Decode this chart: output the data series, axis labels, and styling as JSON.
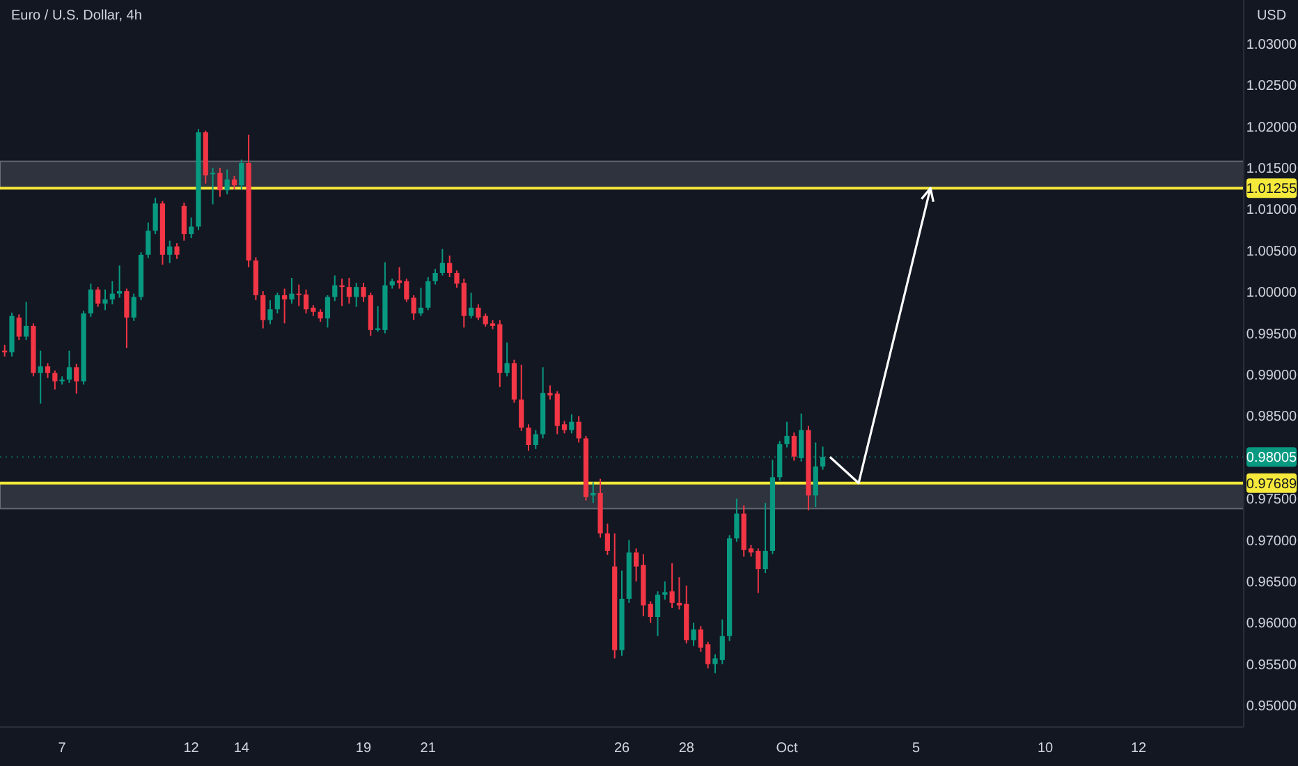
{
  "chart_data": {
    "type": "candlestick",
    "title": "Euro / U.S. Dollar, 4h",
    "ylabel": "USD",
    "categories": [
      null,
      null,
      null,
      null,
      null,
      null,
      null,
      null,
      "7",
      null,
      null,
      null,
      null,
      null,
      null,
      null,
      null,
      null,
      null,
      null,
      null,
      null,
      null,
      null,
      null,
      null,
      "12",
      null,
      null,
      null,
      null,
      null,
      null,
      "14",
      null,
      null,
      null,
      null,
      null,
      null,
      null,
      null,
      null,
      null,
      null,
      null,
      null,
      null,
      null,
      null,
      "19",
      null,
      null,
      null,
      null,
      null,
      null,
      null,
      null,
      "21",
      null,
      null,
      null,
      null,
      null,
      null,
      null,
      null,
      null,
      null,
      null,
      null,
      null,
      null,
      null,
      null,
      null,
      null,
      null,
      null,
      null,
      null,
      null,
      null,
      null,
      null,
      "26",
      null,
      null,
      null,
      null,
      null,
      null,
      null,
      null,
      "28",
      null,
      null,
      null,
      null,
      null,
      null,
      null,
      null,
      null,
      null,
      null,
      null,
      null,
      "Oct",
      null,
      null,
      null,
      null,
      null,
      null,
      null,
      null,
      null,
      null,
      null,
      null,
      null,
      null,
      null,
      null,
      null,
      "5",
      null,
      null,
      null,
      null,
      null,
      null,
      null,
      null,
      null,
      null,
      null,
      null,
      null,
      null,
      null,
      null,
      null,
      "10",
      null,
      null,
      null,
      null,
      null,
      null,
      null,
      null,
      null,
      null,
      null,
      null,
      "12",
      null,
      null,
      null,
      null,
      null,
      null,
      null,
      null,
      null,
      null,
      null,
      null,
      null,
      null
    ],
    "ohlc": [
      [
        0.9929,
        0.9936,
        0.9922,
        0.9927
      ],
      [
        0.9927,
        0.9975,
        0.9922,
        0.9971
      ],
      [
        0.9969,
        0.9973,
        0.9942,
        0.9946
      ],
      [
        0.9946,
        0.9988,
        0.9942,
        0.9959
      ],
      [
        0.9959,
        0.9962,
        0.9898,
        0.9902
      ],
      [
        0.9902,
        0.9929,
        0.9865,
        0.991
      ],
      [
        0.991,
        0.9914,
        0.9896,
        0.9902
      ],
      [
        0.9902,
        0.9905,
        0.9882,
        0.9892
      ],
      [
        0.9892,
        0.9898,
        0.9888,
        0.9894
      ],
      [
        0.9894,
        0.9929,
        0.989,
        0.9909
      ],
      [
        0.9909,
        0.9913,
        0.9877,
        0.9892
      ],
      [
        0.9892,
        0.9977,
        0.9888,
        0.9974
      ],
      [
        0.9974,
        1.001,
        0.997,
        1.0003
      ],
      [
        1.0003,
        1.0006,
        0.9982,
        0.9986
      ],
      [
        0.9986,
        1.0003,
        0.9978,
        0.9991
      ],
      [
        0.9991,
        1.0013,
        0.9985,
        0.9998
      ],
      [
        0.9998,
        1.0032,
        0.9993,
        1.0001
      ],
      [
        1.0001,
        1.0004,
        0.9932,
        0.9969
      ],
      [
        0.9969,
        0.9998,
        0.9965,
        0.9994
      ],
      [
        0.9994,
        1.0048,
        0.999,
        1.0045
      ],
      [
        1.0045,
        1.0084,
        1.0041,
        1.0074
      ],
      [
        1.0074,
        1.0114,
        1.007,
        1.0107
      ],
      [
        1.0107,
        1.011,
        1.0033,
        1.0045
      ],
      [
        1.0045,
        1.0062,
        1.0035,
        1.0055
      ],
      [
        1.0055,
        1.0059,
        1.004,
        1.0045
      ],
      [
        1.0104,
        1.0108,
        1.0062,
        1.007
      ],
      [
        1.007,
        1.009,
        1.0065,
        1.0079
      ],
      [
        1.0079,
        1.0197,
        1.0075,
        1.0193
      ],
      [
        1.0193,
        1.0195,
        1.0131,
        1.0141
      ],
      [
        1.0143,
        1.015,
        1.0106,
        1.0144
      ],
      [
        1.0144,
        1.015,
        1.0115,
        1.0123
      ],
      [
        1.0123,
        1.0148,
        1.0118,
        1.0136
      ],
      [
        1.0136,
        1.014,
        1.0124,
        1.0129
      ],
      [
        1.0129,
        1.016,
        1.0124,
        1.0156
      ],
      [
        1.0156,
        1.019,
        1.003,
        1.0038
      ],
      [
        1.0038,
        1.0042,
        0.999,
        0.9996
      ],
      [
        0.9996,
        1.0001,
        0.9956,
        0.9966
      ],
      [
        0.9966,
        0.999,
        0.9961,
        0.9979
      ],
      [
        0.9979,
        0.9999,
        0.9974,
        0.9996
      ],
      [
        0.9996,
        1.0004,
        0.9962,
        0.9991
      ],
      [
        0.9991,
        1.0017,
        0.9986,
        0.9998
      ],
      [
        0.9998,
        1.0009,
        0.9983,
        0.9997
      ],
      [
        0.9997,
        1.0003,
        0.9974,
        0.9979
      ],
      [
        0.9981,
        0.9984,
        0.9971,
        0.9976
      ],
      [
        0.9976,
        0.9979,
        0.9964,
        0.9968
      ],
      [
        0.9968,
        0.9996,
        0.9957,
        0.9994
      ],
      [
        0.9994,
        1.002,
        0.9989,
        1.0008
      ],
      [
        1.0008,
        1.0016,
        0.9983,
        1.0006
      ],
      [
        1.0006,
        1.0017,
        0.9986,
        0.9994
      ],
      [
        0.9994,
        1.0011,
        0.9982,
        1.0006
      ],
      [
        1.0006,
        1.0011,
        0.9988,
        0.9994
      ],
      [
        0.9996,
        0.9999,
        0.9947,
        0.9954
      ],
      [
        0.9954,
        0.9983,
        0.9952,
        0.9956
      ],
      [
        0.9954,
        1.0036,
        0.995,
        1.0008
      ],
      [
        1.0008,
        1.0016,
        1.0004,
        1.0013
      ],
      [
        1.0014,
        1.003,
        1.0004,
        1.0011
      ],
      [
        1.0013,
        1.0016,
        0.9988,
        0.9991
      ],
      [
        0.9993,
        0.9996,
        0.9966,
        0.9974
      ],
      [
        0.9974,
        1.0005,
        0.9971,
        0.9981
      ],
      [
        0.9981,
        1.0018,
        0.9978,
        1.0013
      ],
      [
        1.0013,
        1.0028,
        1.0009,
        1.0023
      ],
      [
        1.0023,
        1.0052,
        1.002,
        1.0035
      ],
      [
        1.0035,
        1.0044,
        1.0018,
        1.0023
      ],
      [
        1.0023,
        1.0026,
        1.0005,
        1.001
      ],
      [
        1.0011,
        1.0016,
        0.9957,
        0.9971
      ],
      [
        0.9971,
        0.9999,
        0.9968,
        0.9981
      ],
      [
        0.9981,
        0.9985,
        0.9966,
        0.9969
      ],
      [
        0.9971,
        0.9974,
        0.9958,
        0.9961
      ],
      [
        0.9962,
        0.9966,
        0.9955,
        0.9959
      ],
      [
        0.9961,
        0.9966,
        0.9885,
        0.9902
      ],
      [
        0.9902,
        0.9939,
        0.9898,
        0.9914
      ],
      [
        0.9914,
        0.9918,
        0.9866,
        0.987
      ],
      [
        0.987,
        0.9912,
        0.9832,
        0.9836
      ],
      [
        0.9836,
        0.984,
        0.9808,
        0.9815
      ],
      [
        0.9815,
        0.9833,
        0.981,
        0.9828
      ],
      [
        0.9828,
        0.9909,
        0.9823,
        0.9878
      ],
      [
        0.9878,
        0.9887,
        0.987,
        0.9875
      ],
      [
        0.9877,
        0.988,
        0.9828,
        0.9838
      ],
      [
        0.984,
        0.9844,
        0.9829,
        0.9833
      ],
      [
        0.9833,
        0.9852,
        0.9829,
        0.9843
      ],
      [
        0.9843,
        0.985,
        0.9818,
        0.9823
      ],
      [
        0.9823,
        0.9826,
        0.9748,
        0.9752
      ],
      [
        0.9754,
        0.977,
        0.9745,
        0.9757
      ],
      [
        0.9757,
        0.9774,
        0.9703,
        0.9708
      ],
      [
        0.9708,
        0.972,
        0.9682,
        0.9687
      ],
      [
        0.9668,
        0.9708,
        0.9557,
        0.9567
      ],
      [
        0.9567,
        0.9663,
        0.956,
        0.9629
      ],
      [
        0.9629,
        0.97,
        0.9624,
        0.9685
      ],
      [
        0.9685,
        0.969,
        0.965,
        0.9668
      ],
      [
        0.967,
        0.9683,
        0.9608,
        0.9621
      ],
      [
        0.9623,
        0.9626,
        0.96,
        0.9607
      ],
      [
        0.9607,
        0.9638,
        0.9584,
        0.9634
      ],
      [
        0.9634,
        0.965,
        0.9628,
        0.9637
      ],
      [
        0.9638,
        0.9672,
        0.9618,
        0.9624
      ],
      [
        0.9624,
        0.9655,
        0.9616,
        0.9621
      ],
      [
        0.9623,
        0.9645,
        0.9575,
        0.9579
      ],
      [
        0.9579,
        0.96,
        0.9572,
        0.9592
      ],
      [
        0.9592,
        0.9596,
        0.9565,
        0.957
      ],
      [
        0.9574,
        0.9577,
        0.9545,
        0.955
      ],
      [
        0.955,
        0.9562,
        0.9539,
        0.9557
      ],
      [
        0.9555,
        0.9604,
        0.955,
        0.9584
      ],
      [
        0.9584,
        0.9706,
        0.9578,
        0.9702
      ],
      [
        0.9702,
        0.975,
        0.9698,
        0.9732
      ],
      [
        0.9732,
        0.9742,
        0.968,
        0.9688
      ],
      [
        0.969,
        0.9694,
        0.968,
        0.9685
      ],
      [
        0.9687,
        0.969,
        0.9636,
        0.9665
      ],
      [
        0.9665,
        0.9745,
        0.966,
        0.9687
      ],
      [
        0.9687,
        0.9797,
        0.9683,
        0.9776
      ],
      [
        0.9776,
        0.982,
        0.9772,
        0.9816
      ],
      [
        0.9816,
        0.9843,
        0.9812,
        0.9826
      ],
      [
        0.9826,
        0.983,
        0.9796,
        0.9801
      ],
      [
        0.9799,
        0.9853,
        0.9795,
        0.9833
      ],
      [
        0.9833,
        0.9838,
        0.9736,
        0.9754
      ],
      [
        0.9754,
        0.9818,
        0.974,
        0.9789
      ],
      [
        0.9789,
        0.9813,
        0.9785,
        0.98005
      ],
      null,
      null,
      null,
      null,
      null,
      null,
      null,
      null,
      null,
      null,
      null,
      null,
      null,
      null,
      null,
      null,
      null,
      null,
      null,
      null,
      null,
      null,
      null,
      null,
      null,
      null,
      null,
      null,
      null,
      null,
      null,
      null,
      null,
      null,
      null,
      null,
      null,
      null,
      null,
      null,
      null,
      null,
      null,
      null,
      null,
      null,
      null,
      null,
      null,
      null,
      null,
      null,
      null,
      null,
      null,
      null,
      null,
      null
    ],
    "colors": [
      "#f23645",
      "#089981",
      "#f23645",
      "#089981",
      "#f23645",
      "#089981",
      "#f23645",
      "#f23645",
      "#089981",
      "#089981",
      "#f23645",
      "#089981",
      "#089981",
      "#f23645",
      "#089981",
      "#089981",
      "#089981",
      "#f23645",
      "#089981",
      "#089981",
      "#089981",
      "#089981",
      "#f23645",
      "#089981",
      "#f23645",
      "#f23645",
      "#089981",
      "#089981",
      "#f23645",
      "#089981",
      "#f23645",
      "#089981",
      "#f23645",
      "#089981",
      "#f23645",
      "#f23645",
      "#f23645",
      "#089981",
      "#089981",
      "#f23645",
      "#089981",
      "#f23645",
      "#f23645",
      "#f23645",
      "#f23645",
      "#089981",
      "#089981",
      "#f23645",
      "#f23645",
      "#089981",
      "#f23645",
      "#f23645",
      "#089981",
      "#089981",
      "#089981",
      "#f23645",
      "#f23645",
      "#f23645",
      "#089981",
      "#089981",
      "#089981",
      "#089981",
      "#f23645",
      "#f23645",
      "#f23645",
      "#089981",
      "#f23645",
      "#f23645",
      "#f23645",
      "#f23645",
      "#089981",
      "#f23645",
      "#f23645",
      "#f23645",
      "#089981",
      "#089981",
      "#f23645",
      "#f23645",
      "#f23645",
      "#089981",
      "#f23645",
      "#f23645",
      "#089981",
      "#f23645",
      "#f23645",
      "#f23645",
      "#089981",
      "#089981",
      "#f23645",
      "#f23645",
      "#f23645",
      "#089981",
      "#089981",
      "#f23645",
      "#f23645",
      "#f23645",
      "#089981",
      "#f23645",
      "#f23645",
      "#089981",
      "#089981",
      "#089981",
      "#089981",
      "#f23645",
      "#f23645",
      "#f23645",
      "#089981",
      "#089981",
      "#089981",
      "#089981",
      "#f23645",
      "#089981",
      "#f23645",
      "#089981",
      "#089981",
      null,
      null,
      null,
      null,
      null,
      null,
      null,
      null,
      null,
      null,
      null,
      null,
      null,
      null,
      null,
      null,
      null,
      null,
      null,
      null,
      null,
      null,
      null,
      null,
      null,
      null,
      null,
      null,
      null,
      null,
      null,
      null,
      null,
      null,
      null,
      null,
      null,
      null,
      null,
      null,
      null,
      null,
      null,
      null,
      null,
      null,
      null,
      null,
      null,
      null,
      null,
      null,
      null,
      null,
      null,
      null,
      null,
      null
    ],
    "ylim": [
      0.9474,
      1.0353
    ],
    "yticks": [
      {
        "value": 0.95,
        "label": "0.95000"
      },
      {
        "value": 0.955,
        "label": "0.95500"
      },
      {
        "value": 0.96,
        "label": "0.96000"
      },
      {
        "value": 0.965,
        "label": "0.96500"
      },
      {
        "value": 0.97,
        "label": "0.97000"
      },
      {
        "value": 0.975,
        "label": "0.97500"
      },
      {
        "value": 0.985,
        "label": "0.98500"
      },
      {
        "value": 0.99,
        "label": "0.99000"
      },
      {
        "value": 0.995,
        "label": "0.99500"
      },
      {
        "value": 1.0,
        "label": "1.00000"
      },
      {
        "value": 1.005,
        "label": "1.00500"
      },
      {
        "value": 1.01,
        "label": "1.01000"
      },
      {
        "value": 1.015,
        "label": "1.01500"
      },
      {
        "value": 1.02,
        "label": "1.02000"
      },
      {
        "value": 1.025,
        "label": "1.02500"
      },
      {
        "value": 1.03,
        "label": "1.03000"
      }
    ],
    "ref_lines": [
      {
        "axis": "y",
        "value": 1.01255,
        "label": "1.01255",
        "color": "#f5e93b",
        "line_style": "solid"
      },
      {
        "axis": "y",
        "value": 0.97689,
        "label": "0.97689",
        "color": "#f5e93b",
        "line_style": "solid"
      },
      {
        "axis": "y",
        "value": 0.98005,
        "label": "0.98005",
        "color": "#089981",
        "line_style": "dotted"
      }
    ],
    "bands": [
      {
        "axis": "y",
        "from": 1.01255,
        "to": 1.0158,
        "color": "#b2b5be"
      },
      {
        "axis": "y",
        "from": 0.9738,
        "to": 0.97689,
        "color": "#b2b5be"
      }
    ]
  }
}
